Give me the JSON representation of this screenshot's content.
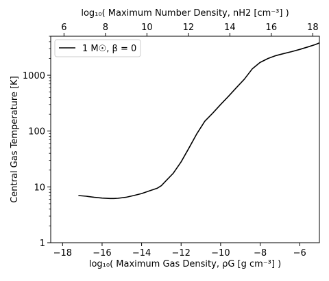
{
  "chart_data": {
    "type": "line",
    "xlabel": "log₁₀( Maximum Gas Density, ρG [g cm⁻³] )",
    "x2label": "log₁₀( Maximum Number Density, nH2 [cm⁻³] )",
    "ylabel": "Central Gas Temperature [K]",
    "yscale": "log",
    "xlim": [
      -18.6,
      -5.0
    ],
    "ylim": [
      1,
      5000
    ],
    "x2lim": [
      5.36,
      18.32
    ],
    "xticks": [
      -18,
      -16,
      -14,
      -12,
      -10,
      -8,
      -6
    ],
    "xtick_labels": [
      "−18",
      "−16",
      "−14",
      "−12",
      "−10",
      "−8",
      "−6"
    ],
    "x2ticks": [
      6,
      8,
      10,
      12,
      14,
      16,
      18
    ],
    "x2tick_labels": [
      "6",
      "8",
      "10",
      "12",
      "14",
      "16",
      "18"
    ],
    "yticks": [
      1,
      10,
      100,
      1000
    ],
    "ytick_labels": [
      "1",
      "10",
      "100",
      "1000"
    ],
    "grid": false,
    "legend_position": "top-left",
    "series": [
      {
        "name": "1 M☉, β = 0",
        "color": "#000000",
        "x": [
          -17.2,
          -16.8,
          -16.4,
          -16.0,
          -15.6,
          -15.4,
          -15.2,
          -14.8,
          -14.4,
          -14.0,
          -13.6,
          -13.2,
          -13.0,
          -12.8,
          -12.4,
          -12.0,
          -11.6,
          -11.2,
          -10.8,
          -10.4,
          -10.0,
          -9.6,
          -9.2,
          -8.8,
          -8.4,
          -8.0,
          -7.6,
          -7.2,
          -6.8,
          -6.4,
          -6.0,
          -5.6,
          -5.2,
          -5.0
        ],
        "y": [
          7.0,
          6.8,
          6.5,
          6.3,
          6.2,
          6.2,
          6.25,
          6.5,
          7.0,
          7.6,
          8.5,
          9.5,
          10.5,
          12.5,
          17.5,
          28,
          50,
          90,
          150,
          210,
          300,
          420,
          600,
          850,
          1300,
          1700,
          2000,
          2250,
          2450,
          2650,
          2900,
          3200,
          3550,
          3800
        ]
      }
    ]
  }
}
